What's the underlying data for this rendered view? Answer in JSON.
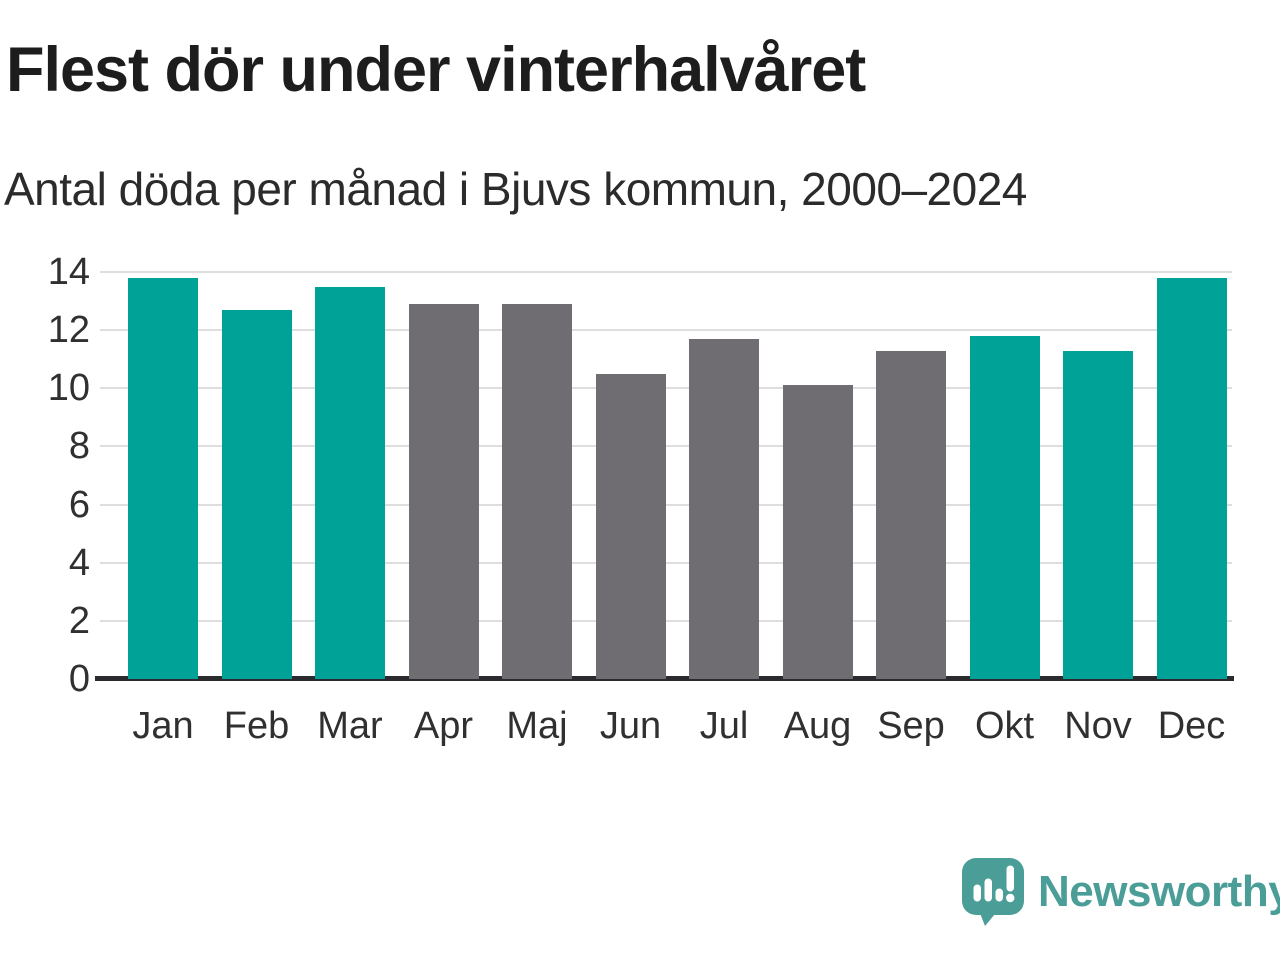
{
  "header": {
    "title": "Flest dör under vinterhalvåret",
    "subtitle": "Antal döda per månad i Bjuvs kommun, 2000–2024"
  },
  "chart_data": {
    "type": "bar",
    "title": "Flest dör under vinterhalvåret",
    "subtitle": "Antal döda per månad i Bjuvs kommun, 2000–2024",
    "categories": [
      "Jan",
      "Feb",
      "Mar",
      "Apr",
      "Maj",
      "Jun",
      "Jul",
      "Aug",
      "Sep",
      "Okt",
      "Nov",
      "Dec"
    ],
    "values": [
      13.8,
      12.7,
      13.5,
      12.9,
      12.9,
      10.5,
      11.7,
      10.1,
      11.3,
      11.8,
      11.3,
      13.8
    ],
    "bar_color_keys": [
      "teal",
      "teal",
      "teal",
      "gray",
      "gray",
      "gray",
      "gray",
      "gray",
      "gray",
      "teal",
      "teal",
      "teal"
    ],
    "colors": {
      "teal": "#00a298",
      "gray": "#6f6d72"
    },
    "xlabel": "",
    "ylabel": "",
    "ylim": [
      0,
      14
    ],
    "yticks": [
      0,
      2,
      4,
      6,
      8,
      10,
      12,
      14
    ],
    "grid": "horizontal-only",
    "legend": "none",
    "axis_line_color": "#2b2a2e",
    "gridline_color": "#dedede"
  },
  "footer": {
    "brand": "Newsworthy",
    "brand_color": "#4a9e97",
    "logo_icon": "newsworthy-speech-bubble-bars-icon"
  }
}
